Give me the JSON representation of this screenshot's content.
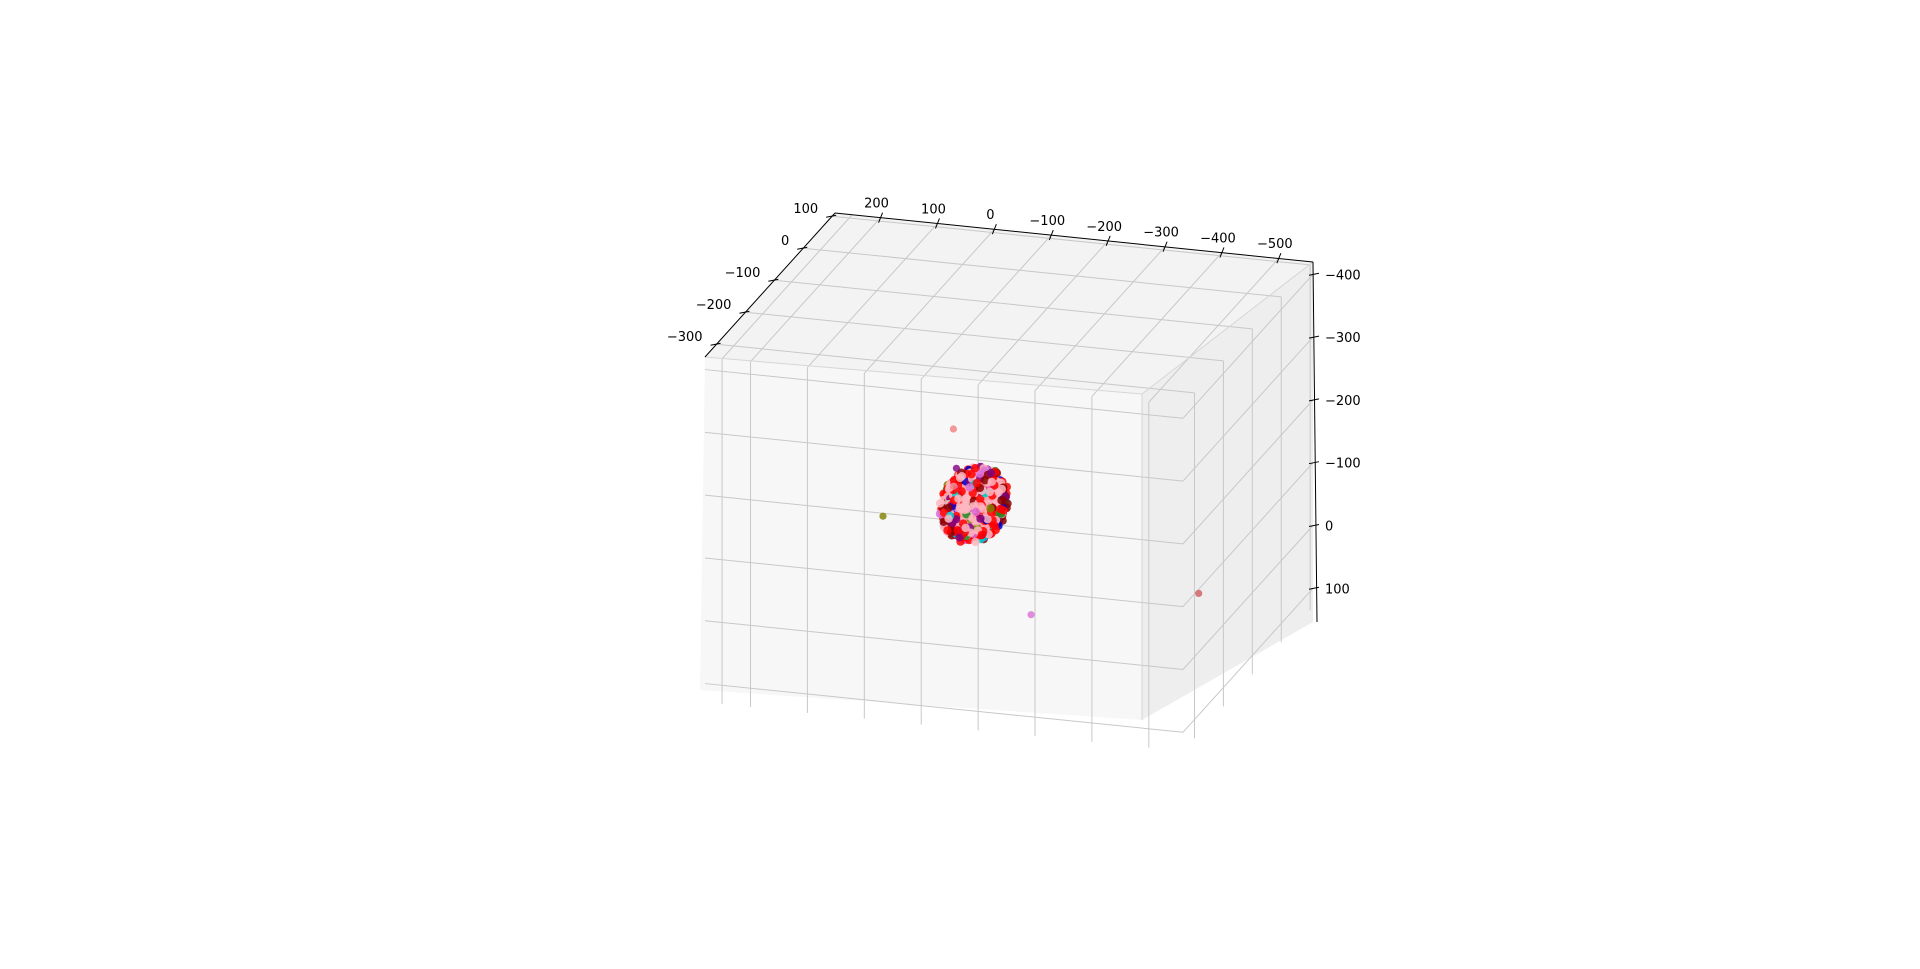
{
  "chart_data": {
    "type": "scatter",
    "projection": "3d",
    "title": "",
    "xlabel": "",
    "ylabel": "",
    "zlabel": "",
    "grid": true,
    "legend": "none",
    "xlim": [
      280,
      -560
    ],
    "ylim": [
      -340,
      110
    ],
    "zlim": [
      130,
      -420
    ],
    "x_ticks": [
      "200",
      "100",
      "0",
      "−100",
      "−200",
      "−300",
      "−400",
      "−500"
    ],
    "y_ticks": [
      "100",
      "0",
      "−100",
      "−200",
      "−300"
    ],
    "z_ticks": [
      "−400",
      "−300",
      "−200",
      "−100",
      "0",
      "100"
    ],
    "series_colors": [
      "#ff0000",
      "#ffb6c1",
      "#800080",
      "#228b22",
      "#0000cd",
      "#00ced1",
      "#8b0000",
      "#da70d6",
      "#808000",
      "#f08080"
    ],
    "cluster": {
      "center": [
        -20,
        0,
        -40
      ],
      "radius": 55,
      "count": 900
    },
    "outliers": [
      {
        "x": -60,
        "y": -150,
        "z": -240,
        "color": "#f08080"
      },
      {
        "x": -40,
        "y": -100,
        "z": -150,
        "color": "#800080"
      },
      {
        "x": -25,
        "y": -80,
        "z": -110,
        "color": "#f08080"
      },
      {
        "x": 150,
        "y": 20,
        "z": 5,
        "color": "#808000"
      },
      {
        "x": -420,
        "y": -10,
        "z": 60,
        "color": "#cd5c5c"
      },
      {
        "x": -90,
        "y": 60,
        "z": 160,
        "color": "#da70d6"
      }
    ]
  }
}
